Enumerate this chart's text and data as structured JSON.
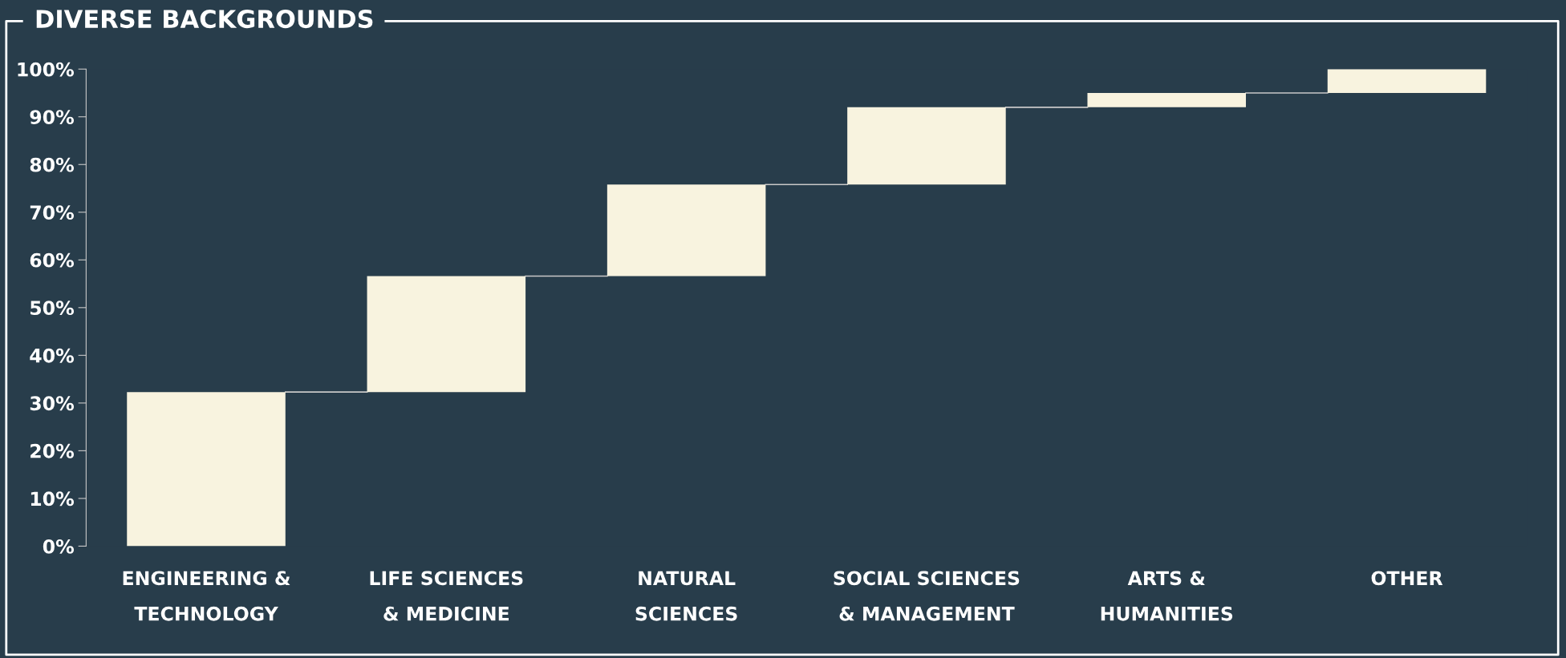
{
  "chart_data": {
    "type": "bar",
    "title": "DIVERSE BACKGROUNDS",
    "categories": [
      "ENGINEERING &\nTECHNOLOGY",
      "LIFE SCIENCES\n& MEDICINE",
      "NATURAL\nSCIENCES",
      "SOCIAL SCIENCES\n& MANAGEMENT",
      "ARTS &\nHUMANITIES",
      "OTHER"
    ],
    "values": [
      32.3,
      24.3,
      19.2,
      16.2,
      3.0,
      5.0
    ],
    "base": [
      0,
      32.3,
      56.6,
      75.8,
      92.0,
      95.0
    ],
    "color": "#f8f3df",
    "ylim": [
      0,
      100
    ],
    "yticks": [
      {
        "value": 0,
        "label": "0%"
      },
      {
        "value": 10,
        "label": "10%"
      },
      {
        "value": 20,
        "label": "20%"
      },
      {
        "value": 30,
        "label": "30%"
      },
      {
        "value": 40,
        "label": "40%"
      },
      {
        "value": 50,
        "label": "50%"
      },
      {
        "value": 60,
        "label": "60%"
      },
      {
        "value": 70,
        "label": "70%"
      },
      {
        "value": 80,
        "label": "80%"
      },
      {
        "value": 90,
        "label": "90%"
      },
      {
        "value": 100,
        "label": "100%"
      }
    ],
    "grid": false
  }
}
